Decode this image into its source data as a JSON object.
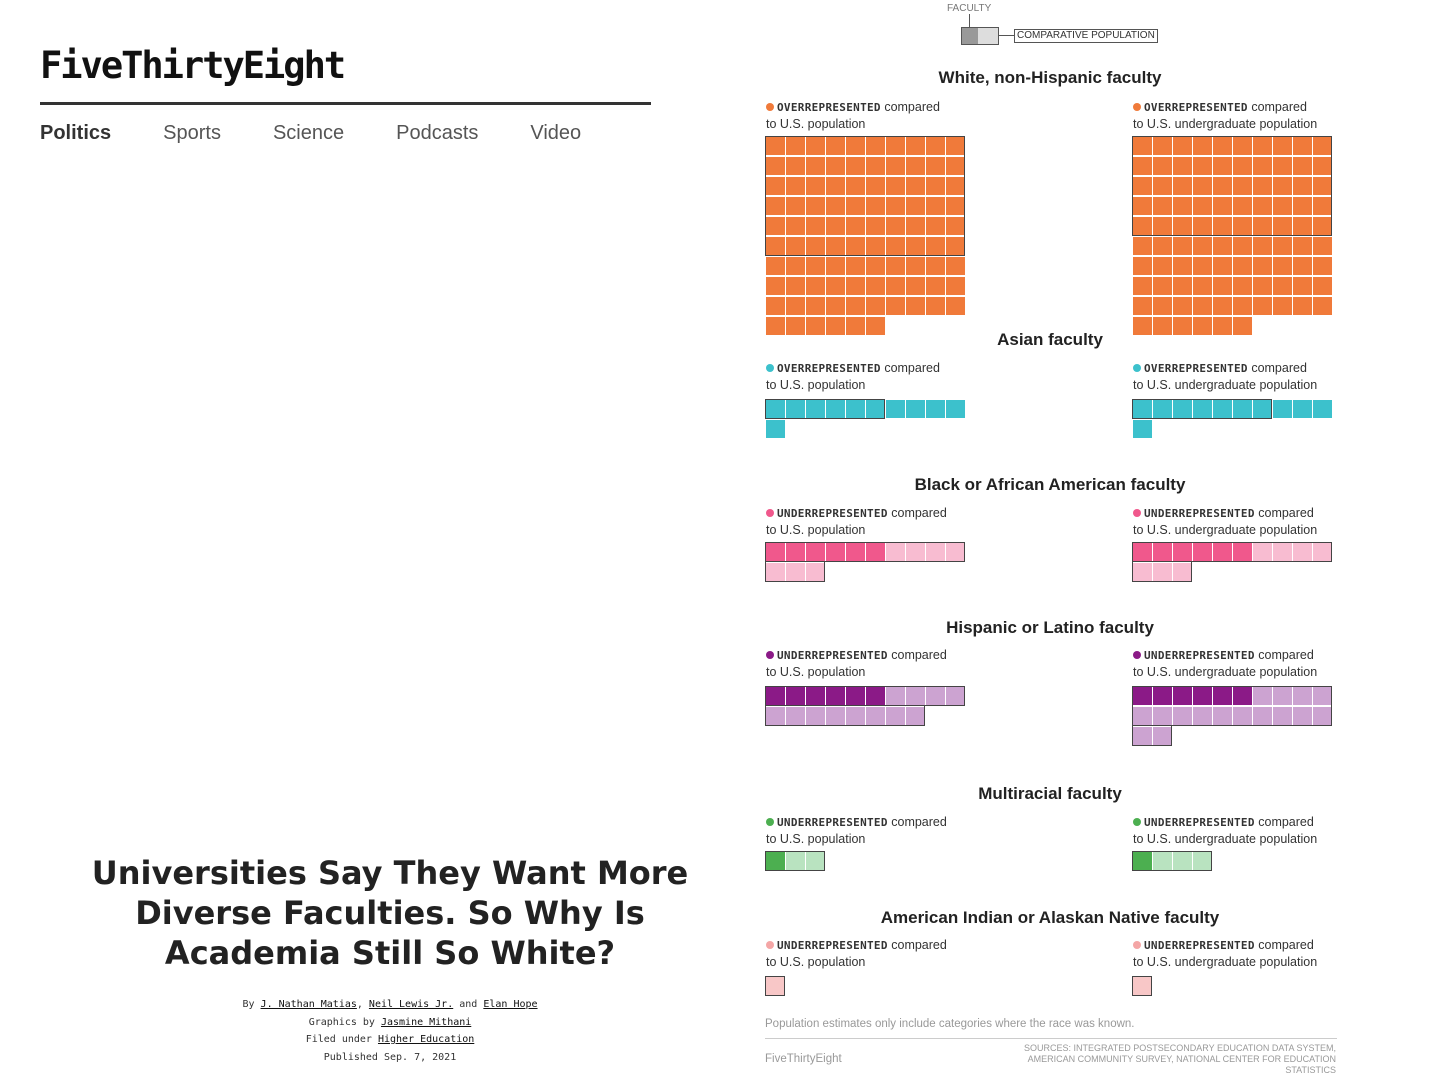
{
  "site": {
    "logo": "FiveThirtyEight"
  },
  "nav": [
    {
      "label": "Politics",
      "active": true
    },
    {
      "label": "Sports"
    },
    {
      "label": "Science"
    },
    {
      "label": "Podcasts"
    },
    {
      "label": "Video"
    }
  ],
  "article": {
    "headline": "Universities Say They Want More Diverse Faculties. So Why Is Academia Still So White?",
    "by_prefix": "By",
    "authors": [
      "J. Nathan Matias",
      "Neil Lewis Jr.",
      "Elan Hope"
    ],
    "and_word": "and",
    "graphics_prefix": "Graphics by",
    "graphics_by": "Jasmine Mithani",
    "filed_prefix": "Filed under",
    "filed_under": "Higher Education",
    "published": "Published Sep. 7, 2021"
  },
  "graphic": {
    "legend": {
      "faculty": "FACULTY",
      "comparative": "COMPARATIVE POPULATION"
    },
    "sections": [
      {
        "title": "White, non-Hispanic faculty",
        "color": "#f07a3a",
        "light": "#f07a3a",
        "left": {
          "status": "OVERREPRESENTED",
          "text": " compared",
          "line2": "to U.S. population",
          "faculty": 96,
          "comparison": 60,
          "total": 65
        },
        "right": {
          "status": "OVERREPRESENTED",
          "text": " compared",
          "line2": "to U.S. undergraduate population",
          "faculty": 96,
          "comparison": 50,
          "total": 56
        }
      },
      {
        "title": "Asian faculty",
        "color": "#3cc1cc",
        "light": "#3cc1cc",
        "left": {
          "status": "OVERREPRESENTED",
          "text": " compared",
          "line2": "to U.S. population",
          "faculty": 11,
          "comparison": 6
        },
        "right": {
          "status": "OVERREPRESENTED",
          "text": " compared",
          "line2": "to U.S. undergraduate population",
          "faculty": 11,
          "comparison": 7
        }
      },
      {
        "title": "Black or African American faculty",
        "color": "#f0588c",
        "light": "#f8bcd1",
        "left": {
          "status": "UNDERREPRESENTED",
          "text": " compared",
          "line2": "to U.S. population",
          "faculty": 6,
          "comparison": 13
        },
        "right": {
          "status": "UNDERREPRESENTED",
          "text": " compared",
          "line2": "to U.S. undergraduate population",
          "faculty": 6,
          "comparison": 13
        }
      },
      {
        "title": "Hispanic or Latino faculty",
        "color": "#8b1a87",
        "light": "#cca3d1",
        "left": {
          "status": "UNDERREPRESENTED",
          "text": " compared",
          "line2": "to U.S. population",
          "faculty": 6,
          "comparison": 18
        },
        "right": {
          "status": "UNDERREPRESENTED",
          "text": " compared",
          "line2": "to U.S. undergraduate population",
          "faculty": 6,
          "comparison": 22
        }
      },
      {
        "title": "Multiracial faculty",
        "color": "#4caf50",
        "light": "#b9e3c0",
        "left": {
          "status": "UNDERREPRESENTED",
          "text": " compared",
          "line2": "to U.S. population",
          "faculty": 1,
          "comparison": 3
        },
        "right": {
          "status": "UNDERREPRESENTED",
          "text": " compared",
          "line2": "to U.S. undergraduate population",
          "faculty": 1,
          "comparison": 4
        }
      },
      {
        "title": "American Indian or Alaskan Native faculty",
        "color": "#f4a6a6",
        "light": "#f8c7c7",
        "left": {
          "status": "UNDERREPRESENTED",
          "text": " compared",
          "line2": "to U.S. population",
          "faculty": 0,
          "comparison": 1
        },
        "right": {
          "status": "UNDERREPRESENTED",
          "text": " compared",
          "line2": "to U.S. undergraduate population",
          "faculty": 0,
          "comparison": 1
        }
      }
    ],
    "note": "Population estimates only include categories where the race was known.",
    "brand": "FiveThirtyEight",
    "sources": "Sources: Integrated Postsecondary Education Data System, American Community Survey, National Center for Education Statistics"
  }
}
